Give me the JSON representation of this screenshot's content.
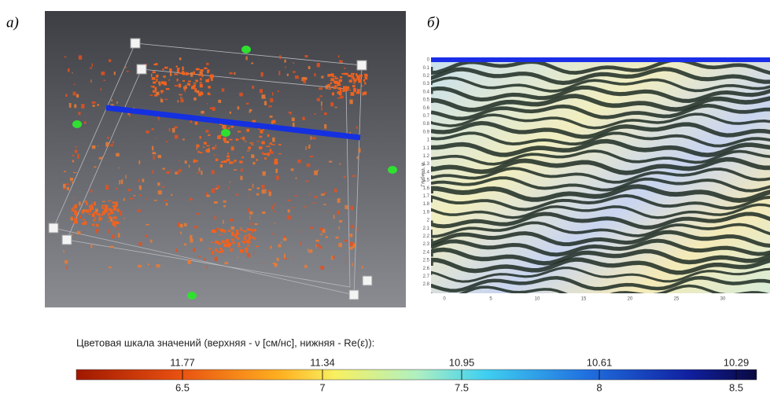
{
  "panel_a": {
    "label": "а)"
  },
  "panel_b": {
    "label": "б)",
    "y_axis_label": "Глубина, м",
    "yticks": [
      0,
      0.1,
      0.2,
      0.3,
      0.4,
      0.5,
      0.6,
      0.7,
      0.8,
      0.9,
      1,
      1.1,
      1.2,
      1.3,
      1.4,
      1.5,
      1.6,
      1.7,
      1.8,
      1.9,
      2,
      2.1,
      2.2,
      2.3,
      2.4,
      2.5,
      2.6,
      2.7,
      2.8
    ],
    "xticks": [
      0,
      5,
      10,
      15,
      20,
      25,
      30
    ]
  },
  "colorbar": {
    "title": "Цветовая шкала значений (верхняя - ν [см/нс], нижняя - Re(ε)):",
    "top_labels": [
      "11.77",
      "11.34",
      "10.95",
      "10.61",
      "10.29"
    ],
    "bottom_labels": [
      "6.5",
      "7",
      "7.5",
      "8",
      "8.5"
    ]
  }
}
